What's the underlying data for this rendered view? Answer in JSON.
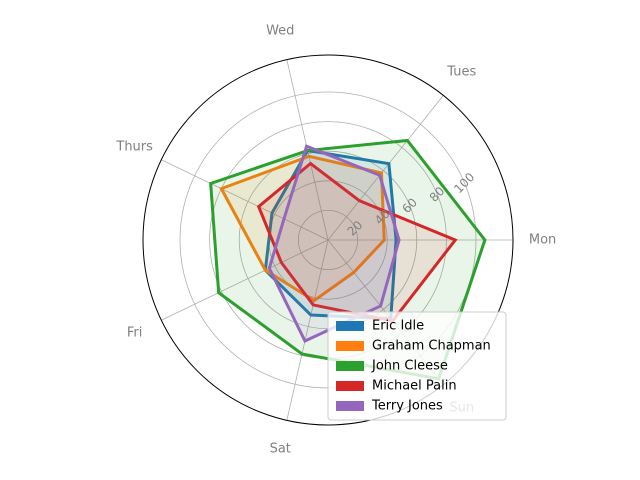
{
  "chart_data": {
    "type": "radar",
    "categories": [
      "Mon",
      "Tues",
      "Wed",
      "Thurs",
      "Fri",
      "Sat",
      "Sun"
    ],
    "rlim": [
      0,
      125
    ],
    "radial_ticks": [
      20,
      40,
      60,
      80,
      100
    ],
    "grid": true,
    "legend_position": "lower-right",
    "series": [
      {
        "name": "Eric Idle",
        "color": "#1f77b4",
        "values": [
          46,
          66,
          62,
          42,
          47,
          52,
          68
        ]
      },
      {
        "name": "Graham Chapman",
        "color": "#ff7f0e",
        "values": [
          38,
          58,
          58,
          80,
          47,
          42,
          28
        ]
      },
      {
        "name": "John Cleese",
        "color": "#2ca02c",
        "values": [
          106,
          86,
          62,
          88,
          82,
          79,
          120
        ]
      },
      {
        "name": "Michael Palin",
        "color": "#d62728",
        "values": [
          86,
          34,
          53,
          52,
          35,
          45,
          70
        ]
      },
      {
        "name": "Terry Jones",
        "color": "#9467bd",
        "values": [
          48,
          56,
          65,
          33,
          44,
          70,
          57
        ]
      }
    ]
  }
}
